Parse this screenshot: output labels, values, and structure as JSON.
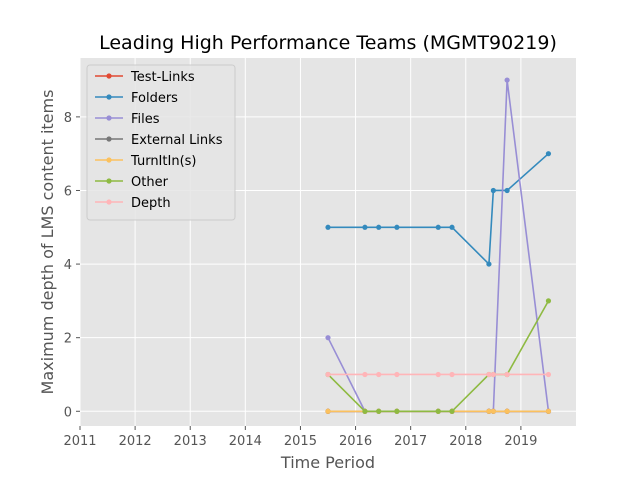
{
  "chart_data": {
    "type": "line",
    "title": "Leading High Performance Teams (MGMT90219)",
    "xlabel": "Time Period",
    "ylabel": "Maximum depth of LMS content items",
    "xlim": [
      2011.0,
      2020.0
    ],
    "ylim": [
      -0.4,
      9.6
    ],
    "x_ticks": [
      "2011",
      "2012",
      "2013",
      "2014",
      "2015",
      "2016",
      "2017",
      "2018",
      "2019"
    ],
    "y_ticks": [
      0,
      2,
      4,
      6,
      8
    ],
    "grid": true,
    "background": "#e5e5e5",
    "legend_position": "top-left",
    "series": [
      {
        "name": "Test-Links",
        "color": "#e24a33",
        "points": [
          [
            2015.5,
            0
          ],
          [
            2016.17,
            0
          ],
          [
            2016.42,
            0
          ],
          [
            2016.75,
            0
          ],
          [
            2017.5,
            0
          ],
          [
            2017.75,
            0
          ],
          [
            2018.42,
            0
          ],
          [
            2018.5,
            0
          ],
          [
            2018.75,
            0
          ],
          [
            2019.5,
            0
          ]
        ]
      },
      {
        "name": "Folders",
        "color": "#348abd",
        "points": [
          [
            2015.5,
            5
          ],
          [
            2016.17,
            5
          ],
          [
            2016.42,
            5
          ],
          [
            2016.75,
            5
          ],
          [
            2017.5,
            5
          ],
          [
            2017.75,
            5
          ],
          [
            2018.42,
            4
          ],
          [
            2018.5,
            6
          ],
          [
            2018.75,
            6
          ],
          [
            2019.5,
            7
          ]
        ]
      },
      {
        "name": "Files",
        "color": "#988ed5",
        "points": [
          [
            2015.5,
            2
          ],
          [
            2016.17,
            0
          ],
          [
            2016.42,
            0
          ],
          [
            2016.75,
            0
          ],
          [
            2017.5,
            0
          ],
          [
            2017.75,
            0
          ],
          [
            2018.42,
            0
          ],
          [
            2018.5,
            0
          ],
          [
            2018.75,
            9
          ],
          [
            2019.5,
            0
          ]
        ]
      },
      {
        "name": "External Links",
        "color": "#777777",
        "points": [
          [
            2015.5,
            0
          ],
          [
            2016.17,
            0
          ],
          [
            2016.42,
            0
          ],
          [
            2016.75,
            0
          ],
          [
            2017.5,
            0
          ],
          [
            2017.75,
            0
          ],
          [
            2018.42,
            0
          ],
          [
            2018.5,
            0
          ],
          [
            2018.75,
            0
          ],
          [
            2019.5,
            0
          ]
        ]
      },
      {
        "name": "TurnItIn(s)",
        "color": "#fbc15e",
        "points": [
          [
            2015.5,
            0
          ],
          [
            2016.17,
            0
          ],
          [
            2016.42,
            0
          ],
          [
            2016.75,
            0
          ],
          [
            2017.5,
            0
          ],
          [
            2017.75,
            0
          ],
          [
            2018.42,
            0
          ],
          [
            2018.5,
            0
          ],
          [
            2018.75,
            0
          ],
          [
            2019.5,
            0
          ]
        ]
      },
      {
        "name": "Other",
        "color": "#8eba42",
        "points": [
          [
            2015.5,
            1
          ],
          [
            2016.17,
            0
          ],
          [
            2016.42,
            0
          ],
          [
            2016.75,
            0
          ],
          [
            2017.5,
            0
          ],
          [
            2017.75,
            0
          ],
          [
            2018.42,
            1
          ],
          [
            2018.5,
            1
          ],
          [
            2018.75,
            1
          ],
          [
            2019.5,
            3
          ]
        ]
      },
      {
        "name": "Depth",
        "color": "#ffb5b8",
        "points": [
          [
            2015.5,
            1
          ],
          [
            2016.17,
            1
          ],
          [
            2016.42,
            1
          ],
          [
            2016.75,
            1
          ],
          [
            2017.5,
            1
          ],
          [
            2017.75,
            1
          ],
          [
            2018.42,
            1
          ],
          [
            2018.5,
            1
          ],
          [
            2018.75,
            1
          ],
          [
            2019.5,
            1
          ]
        ]
      }
    ]
  }
}
